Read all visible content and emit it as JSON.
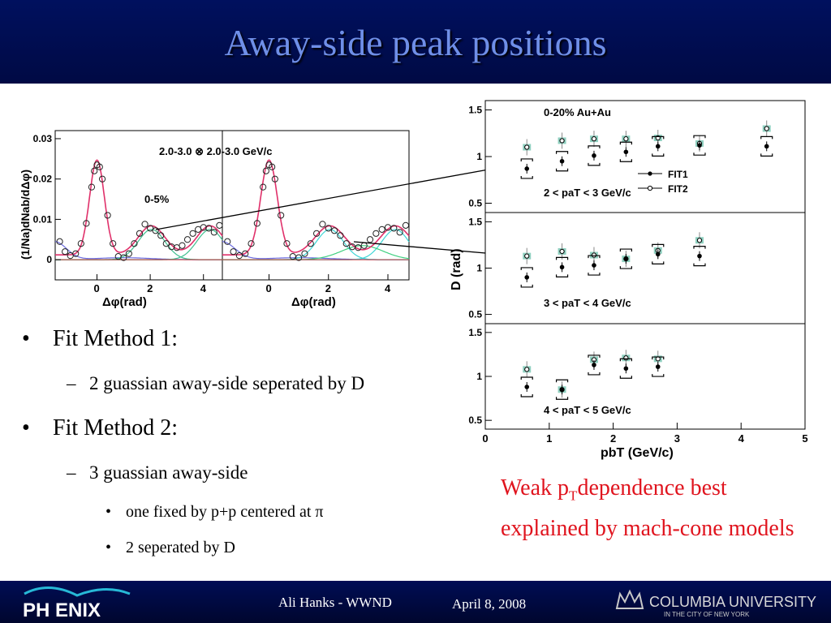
{
  "slide": {
    "title": "Away-side peak positions",
    "bullets": [
      {
        "level": 1,
        "marker": "•",
        "text": "Fit Method 1:"
      },
      {
        "level": 2,
        "marker": "–",
        "text": "2 guassian away-side seperated by D"
      },
      {
        "level": 1,
        "marker": "•",
        "text": "Fit Method 2:"
      },
      {
        "level": 2,
        "marker": "–",
        "text": "3 guassian away-side"
      },
      {
        "level": 3,
        "marker": "•",
        "text": "one fixed by p+p centered at π"
      },
      {
        "level": 3,
        "marker": "•",
        "text": "2 seperated by D"
      }
    ],
    "note": {
      "before_sub": "Weak p",
      "sub": "T",
      "after_sub": "dependence best explained by mach-cone models"
    },
    "footer": {
      "author": "Ali Hanks - WWND",
      "date": "April 8, 2008",
      "left_logo_text": "PH ENIX",
      "right_logo_text": "COLUMBIA UNIVERSITY",
      "right_logo_subtext": "IN THE CITY OF NEW YORK"
    }
  },
  "chart_data": [
    {
      "type": "scatter",
      "label_top": "2.0-3.0 ⊗ 2.0-3.0 GeV/c",
      "annotation": "0-5%",
      "ylabel": "(1/Na)dNab/dΔφ)",
      "xlabel": "Δφ(rad)",
      "panels": [
        {
          "xlim": [
            -1.57,
            4.71
          ],
          "ylim": [
            -0.005,
            0.032
          ],
          "xticks": [
            "0",
            "2",
            "4"
          ],
          "yticks": [
            "0",
            "0.01",
            "0.02",
            "0.03"
          ],
          "points": [
            [
              -1.4,
              0.0045
            ],
            [
              -1.2,
              0.002
            ],
            [
              -1.0,
              0.001
            ],
            [
              -0.8,
              0.0015
            ],
            [
              -0.6,
              0.004
            ],
            [
              -0.4,
              0.009
            ],
            [
              -0.2,
              0.018
            ],
            [
              -0.1,
              0.022
            ],
            [
              0.0,
              0.0235
            ],
            [
              0.1,
              0.023
            ],
            [
              0.2,
              0.02
            ],
            [
              0.4,
              0.011
            ],
            [
              0.6,
              0.004
            ],
            [
              0.8,
              0.0008
            ],
            [
              1.0,
              0.0005
            ],
            [
              1.2,
              0.0015
            ],
            [
              1.4,
              0.004
            ],
            [
              1.6,
              0.0065
            ],
            [
              1.8,
              0.0088
            ],
            [
              2.0,
              0.0078
            ],
            [
              2.2,
              0.0072
            ],
            [
              2.4,
              0.006
            ],
            [
              2.6,
              0.004
            ],
            [
              2.8,
              0.0032
            ],
            [
              3.0,
              0.003
            ],
            [
              3.2,
              0.0035
            ],
            [
              3.4,
              0.005
            ],
            [
              3.6,
              0.0065
            ],
            [
              3.8,
              0.0075
            ],
            [
              4.0,
              0.008
            ],
            [
              4.2,
              0.0078
            ],
            [
              4.4,
              0.0068
            ],
            [
              4.6,
              0.0085
            ]
          ]
        },
        {
          "xlim": [
            -1.57,
            4.71
          ],
          "ylim": [
            -0.005,
            0.032
          ],
          "xticks": [
            "0",
            "2",
            "4"
          ],
          "yticks": [],
          "points": [
            [
              -1.4,
              0.0045
            ],
            [
              -1.2,
              0.002
            ],
            [
              -1.0,
              0.001
            ],
            [
              -0.8,
              0.0015
            ],
            [
              -0.6,
              0.004
            ],
            [
              -0.4,
              0.009
            ],
            [
              -0.2,
              0.018
            ],
            [
              -0.1,
              0.022
            ],
            [
              0.0,
              0.0235
            ],
            [
              0.1,
              0.023
            ],
            [
              0.2,
              0.02
            ],
            [
              0.4,
              0.011
            ],
            [
              0.6,
              0.004
            ],
            [
              0.8,
              0.0008
            ],
            [
              1.0,
              0.0005
            ],
            [
              1.2,
              0.0015
            ],
            [
              1.4,
              0.004
            ],
            [
              1.6,
              0.0065
            ],
            [
              1.8,
              0.0088
            ],
            [
              2.0,
              0.0078
            ],
            [
              2.2,
              0.0072
            ],
            [
              2.4,
              0.006
            ],
            [
              2.6,
              0.004
            ],
            [
              2.8,
              0.0032
            ],
            [
              3.0,
              0.003
            ],
            [
              3.2,
              0.0035
            ],
            [
              3.4,
              0.005
            ],
            [
              3.6,
              0.0065
            ],
            [
              3.8,
              0.0075
            ],
            [
              4.0,
              0.008
            ],
            [
              4.2,
              0.0078
            ],
            [
              4.4,
              0.0068
            ],
            [
              4.6,
              0.0085
            ]
          ]
        }
      ]
    },
    {
      "type": "scatter",
      "annotation": "0-20% Au+Au",
      "ylabel": "D (rad)",
      "xlabel": "pbT (GeV/c)",
      "xlim": [
        0,
        5
      ],
      "xticks": [
        "0",
        "1",
        "2",
        "3",
        "4",
        "5"
      ],
      "legend": [
        {
          "name": "FIT1",
          "marker": "filled"
        },
        {
          "name": "FIT2",
          "marker": "open"
        }
      ],
      "panels": [
        {
          "label": "2 < paT < 3 GeV/c",
          "ylim": [
            0.4,
            1.6
          ],
          "yticks": [
            "0.5",
            "1",
            "1.5"
          ],
          "fit1": [
            [
              0.65,
              0.87
            ],
            [
              1.2,
              0.95
            ],
            [
              1.7,
              1.01
            ],
            [
              2.2,
              1.05
            ],
            [
              2.7,
              1.11
            ],
            [
              3.35,
              1.12
            ],
            [
              4.4,
              1.11
            ]
          ],
          "fit2": [
            [
              0.65,
              1.1
            ],
            [
              1.2,
              1.17
            ],
            [
              1.7,
              1.19
            ],
            [
              2.2,
              1.19
            ],
            [
              2.7,
              1.2
            ],
            [
              3.35,
              1.14
            ],
            [
              4.4,
              1.3
            ]
          ]
        },
        {
          "label": "3 < paT < 4 GeV/c",
          "ylim": [
            0.4,
            1.6
          ],
          "yticks": [
            "0.5",
            "1",
            "1.5"
          ],
          "fit1": [
            [
              0.65,
              0.9
            ],
            [
              1.2,
              1.01
            ],
            [
              1.7,
              1.03
            ],
            [
              2.2,
              1.1
            ],
            [
              2.7,
              1.15
            ],
            [
              3.35,
              1.13
            ]
          ],
          "fit2": [
            [
              0.65,
              1.13
            ],
            [
              1.2,
              1.18
            ],
            [
              1.7,
              1.14
            ],
            [
              2.2,
              1.1
            ],
            [
              2.7,
              1.19
            ],
            [
              3.35,
              1.3
            ]
          ]
        },
        {
          "label": "4 < paT < 5 GeV/c",
          "ylim": [
            0.4,
            1.6
          ],
          "yticks": [
            "0.5",
            "1",
            "1.5"
          ],
          "fit1": [
            [
              0.65,
              0.88
            ],
            [
              1.2,
              0.85
            ],
            [
              1.7,
              1.13
            ],
            [
              2.2,
              1.09
            ],
            [
              2.7,
              1.11
            ]
          ],
          "fit2": [
            [
              0.65,
              1.08
            ],
            [
              1.2,
              0.85
            ],
            [
              1.7,
              1.19
            ],
            [
              2.2,
              1.21
            ],
            [
              2.7,
              1.2
            ]
          ]
        }
      ]
    }
  ]
}
